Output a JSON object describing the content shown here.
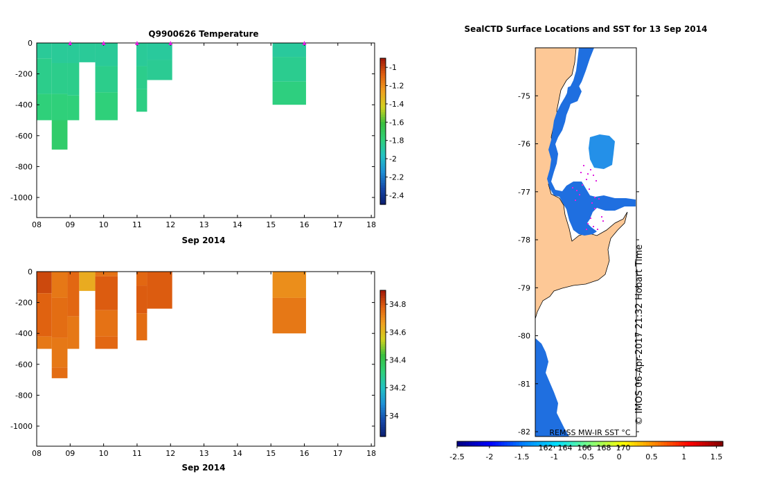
{
  "colors": {
    "temp_colormap": [
      "#0b1d6e",
      "#1548a8",
      "#1e8fd6",
      "#22c1c4",
      "#2fd07a",
      "#38c040",
      "#d2d21e",
      "#f0a020",
      "#e06010",
      "#a01808"
    ],
    "sal_colormap": [
      "#0b1d6e",
      "#1548a8",
      "#1e8fd6",
      "#22c1c4",
      "#2fd07a",
      "#38c040",
      "#d2d21e",
      "#f0a020",
      "#e06010",
      "#a01808"
    ],
    "land": "#fdc896",
    "ice_blue": "#1f6fe0",
    "light_blue": "#2490e8",
    "marker": "#e020e0"
  },
  "chart_data": [
    {
      "type": "heatmap",
      "name": "temperature-section",
      "title": "Q9900626  Temperature",
      "xlabel": "Sep 2014",
      "ylabel": "",
      "x_ticks": [
        "08",
        "09",
        "10",
        "11",
        "12",
        "13",
        "14",
        "15",
        "16",
        "17",
        "18"
      ],
      "xlim": [
        8,
        18.1
      ],
      "y_ticks": [
        0,
        -200,
        -400,
        -600,
        -800,
        -1000
      ],
      "y_tick_labels": [
        "0",
        "-200",
        "-400",
        "-600",
        "-800",
        "-1000"
      ],
      "ylim": [
        -1130,
        0
      ],
      "colorbar": {
        "range": [
          -2.5,
          -0.9
        ],
        "ticks": [
          -1,
          -1.2,
          -1.4,
          -1.6,
          -1.8,
          -2,
          -2.2,
          -2.4
        ],
        "tick_labels": [
          "-1",
          "-1.2",
          "-1.4",
          "-1.6",
          "-1.8",
          "-2",
          "-2.2",
          "-2.4"
        ]
      },
      "profile_markers_x": [
        9.0,
        10.0,
        11.0,
        12.0,
        16.0
      ],
      "cells": [
        {
          "x0": 8.0,
          "x1": 8.45,
          "y0": 0,
          "y1": -100,
          "v": -1.86
        },
        {
          "x0": 8.0,
          "x1": 8.45,
          "y0": -100,
          "y1": -330,
          "v": -1.83
        },
        {
          "x0": 8.0,
          "x1": 8.45,
          "y0": -330,
          "y1": -500,
          "v": -1.79
        },
        {
          "x0": 8.45,
          "x1": 8.92,
          "y0": 0,
          "y1": -130,
          "v": -1.86
        },
        {
          "x0": 8.45,
          "x1": 8.92,
          "y0": -130,
          "y1": -330,
          "v": -1.83
        },
        {
          "x0": 8.45,
          "x1": 8.92,
          "y0": -330,
          "y1": -500,
          "v": -1.79
        },
        {
          "x0": 8.45,
          "x1": 8.92,
          "y0": -500,
          "y1": -690,
          "v": -1.74
        },
        {
          "x0": 8.92,
          "x1": 9.27,
          "y0": 0,
          "y1": -130,
          "v": -1.86
        },
        {
          "x0": 8.92,
          "x1": 9.27,
          "y0": -130,
          "y1": -340,
          "v": -1.83
        },
        {
          "x0": 8.92,
          "x1": 9.27,
          "y0": -340,
          "y1": -500,
          "v": -1.79
        },
        {
          "x0": 9.27,
          "x1": 9.75,
          "y0": 0,
          "y1": -125,
          "v": -1.86
        },
        {
          "x0": 9.75,
          "x1": 10.42,
          "y0": 0,
          "y1": -150,
          "v": -1.86
        },
        {
          "x0": 9.75,
          "x1": 10.42,
          "y0": -150,
          "y1": -320,
          "v": -1.83
        },
        {
          "x0": 9.75,
          "x1": 10.42,
          "y0": -320,
          "y1": -500,
          "v": -1.79
        },
        {
          "x0": 10.98,
          "x1": 11.3,
          "y0": 0,
          "y1": -150,
          "v": -1.86
        },
        {
          "x0": 10.98,
          "x1": 11.3,
          "y0": -150,
          "y1": -300,
          "v": -1.83
        },
        {
          "x0": 10.98,
          "x1": 11.3,
          "y0": -300,
          "y1": -445,
          "v": -1.81
        },
        {
          "x0": 11.3,
          "x1": 12.05,
          "y0": 0,
          "y1": -110,
          "v": -1.87
        },
        {
          "x0": 11.3,
          "x1": 12.05,
          "y0": -110,
          "y1": -240,
          "v": -1.85
        },
        {
          "x0": 15.05,
          "x1": 16.05,
          "y0": 0,
          "y1": -90,
          "v": -1.87
        },
        {
          "x0": 15.05,
          "x1": 16.05,
          "y0": -90,
          "y1": -250,
          "v": -1.84
        },
        {
          "x0": 15.05,
          "x1": 16.05,
          "y0": -250,
          "y1": -400,
          "v": -1.8
        }
      ]
    },
    {
      "type": "heatmap",
      "name": "salinity-section",
      "title": "",
      "xlabel": "Sep 2014",
      "ylabel": "",
      "x_ticks": [
        "08",
        "09",
        "10",
        "11",
        "12",
        "13",
        "14",
        "15",
        "16",
        "17",
        "18"
      ],
      "xlim": [
        8,
        18.1
      ],
      "y_ticks": [
        0,
        -200,
        -400,
        -600,
        -800,
        -1000
      ],
      "y_tick_labels": [
        "0",
        "-200",
        "-400",
        "-600",
        "-800",
        "-1000"
      ],
      "ylim": [
        -1130,
        0
      ],
      "colorbar": {
        "range": [
          33.85,
          34.9
        ],
        "ticks": [
          34.8,
          34.6,
          34.4,
          34.2,
          34.0
        ],
        "tick_labels": [
          "34.8",
          "34.6",
          "34.4",
          "34.2",
          "34"
        ]
      },
      "cells": [
        {
          "x0": 8.0,
          "x1": 8.45,
          "y0": 0,
          "y1": -140,
          "v": 34.82
        },
        {
          "x0": 8.0,
          "x1": 8.45,
          "y0": -140,
          "y1": -420,
          "v": 34.78
        },
        {
          "x0": 8.0,
          "x1": 8.45,
          "y0": -420,
          "y1": -500,
          "v": 34.74
        },
        {
          "x0": 8.45,
          "x1": 8.92,
          "y0": 0,
          "y1": -170,
          "v": 34.74
        },
        {
          "x0": 8.45,
          "x1": 8.92,
          "y0": -170,
          "y1": -430,
          "v": 34.76
        },
        {
          "x0": 8.45,
          "x1": 8.92,
          "y0": -430,
          "y1": -620,
          "v": 34.74
        },
        {
          "x0": 8.45,
          "x1": 8.92,
          "y0": -620,
          "y1": -690,
          "v": 34.76
        },
        {
          "x0": 8.92,
          "x1": 9.27,
          "y0": 0,
          "y1": -290,
          "v": 34.77
        },
        {
          "x0": 8.92,
          "x1": 9.27,
          "y0": -290,
          "y1": -500,
          "v": 34.74
        },
        {
          "x0": 9.27,
          "x1": 9.75,
          "y0": 0,
          "y1": -125,
          "v": 34.64
        },
        {
          "x0": 9.75,
          "x1": 10.42,
          "y0": 0,
          "y1": -30,
          "v": 34.75
        },
        {
          "x0": 9.75,
          "x1": 10.42,
          "y0": -30,
          "y1": -250,
          "v": 34.79
        },
        {
          "x0": 9.75,
          "x1": 10.42,
          "y0": -250,
          "y1": -420,
          "v": 34.75
        },
        {
          "x0": 9.75,
          "x1": 10.42,
          "y0": -420,
          "y1": -500,
          "v": 34.77
        },
        {
          "x0": 10.98,
          "x1": 11.3,
          "y0": 0,
          "y1": -90,
          "v": 34.77
        },
        {
          "x0": 10.98,
          "x1": 11.3,
          "y0": -90,
          "y1": -270,
          "v": 34.79
        },
        {
          "x0": 10.98,
          "x1": 11.3,
          "y0": -270,
          "y1": -445,
          "v": 34.76
        },
        {
          "x0": 11.3,
          "x1": 12.05,
          "y0": 0,
          "y1": -240,
          "v": 34.79
        },
        {
          "x0": 15.05,
          "x1": 16.05,
          "y0": 0,
          "y1": -170,
          "v": 34.7
        },
        {
          "x0": 15.05,
          "x1": 16.05,
          "y0": -170,
          "y1": -400,
          "v": 34.74
        }
      ]
    },
    {
      "type": "map",
      "name": "sst-map",
      "title": "SealCTD Surface Locations and SST for 13 Sep 2014",
      "y_ticks": [
        -75,
        -76,
        -77,
        -78,
        -79,
        -80,
        -81,
        -82
      ],
      "y_tick_labels": [
        "-75",
        "-76",
        "-77",
        "-78",
        "-79",
        "-80",
        "-81",
        "-82"
      ],
      "ylim": [
        -82.1,
        -74.0
      ],
      "colorbar": {
        "range": [
          -2.5,
          1.6
        ],
        "ticks": [
          -2.5,
          -2,
          -1.5,
          -1,
          -0.5,
          0,
          0.5,
          1,
          1.5
        ],
        "tick_labels": [
          "-2.5",
          "-2",
          "-1.5",
          "-1",
          "-0.5",
          "0",
          "0.5",
          "1",
          "1.5"
        ]
      },
      "colorbar_overlay_labels": [
        "162",
        "164",
        "166",
        "168",
        "170"
      ],
      "colorbar_label": "REMSS MW-IR SST °C",
      "credit": "© IMOS 06-Apr-2017 21:32 Hobart Time"
    }
  ]
}
